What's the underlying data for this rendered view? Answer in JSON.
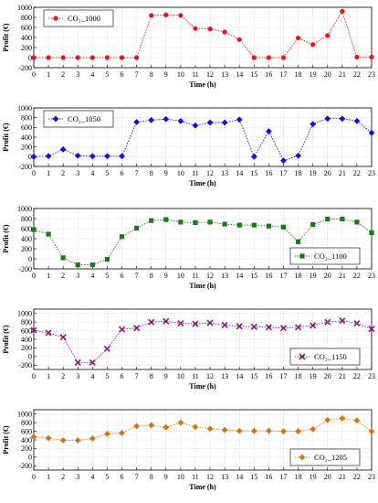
{
  "chart_data": [
    {
      "type": "line",
      "series": [
        {
          "name": "CO₂_1000",
          "color": "#e8141e",
          "marker": "circle",
          "x": [
            0,
            1,
            2,
            3,
            4,
            5,
            6,
            7,
            8,
            9,
            10,
            11,
            12,
            13,
            14,
            15,
            16,
            17,
            18,
            19,
            20,
            21,
            22,
            23
          ],
          "values": [
            0,
            0,
            0,
            0,
            0,
            0,
            0,
            0,
            840,
            850,
            840,
            580,
            570,
            510,
            360,
            0,
            0,
            0,
            390,
            260,
            440,
            920,
            10,
            10
          ]
        }
      ],
      "xlabel": "Time (h)",
      "ylabel": "Profit (€)",
      "xlim": [
        0,
        23
      ],
      "ylim": [
        -200,
        1000
      ],
      "yticks": [
        -200,
        0,
        200,
        400,
        600,
        800,
        1000
      ],
      "xticks": [
        0,
        1,
        2,
        3,
        4,
        5,
        6,
        7,
        8,
        9,
        10,
        11,
        12,
        13,
        14,
        15,
        16,
        17,
        18,
        19,
        20,
        21,
        22,
        23
      ],
      "grid": true,
      "legend": "top-left"
    },
    {
      "type": "line",
      "series": [
        {
          "name": "CO₂_1050",
          "color": "#1010d8",
          "marker": "diamond",
          "x": [
            0,
            1,
            2,
            3,
            4,
            5,
            6,
            7,
            8,
            9,
            10,
            11,
            12,
            13,
            14,
            15,
            16,
            17,
            18,
            19,
            20,
            21,
            22,
            23
          ],
          "values": [
            0,
            10,
            150,
            20,
            10,
            10,
            10,
            710,
            750,
            770,
            730,
            640,
            700,
            700,
            760,
            0,
            520,
            -80,
            20,
            670,
            780,
            780,
            730,
            490
          ]
        }
      ],
      "xlabel": "Time (h)",
      "ylabel": "Profit (€)",
      "xlim": [
        0,
        23
      ],
      "ylim": [
        -200,
        1000
      ],
      "yticks": [
        -200,
        0,
        200,
        400,
        600,
        800,
        1000
      ],
      "xticks": [
        0,
        1,
        2,
        3,
        4,
        5,
        6,
        7,
        8,
        9,
        10,
        11,
        12,
        13,
        14,
        15,
        16,
        17,
        18,
        19,
        20,
        21,
        22,
        23
      ],
      "grid": true,
      "legend": "top-left"
    },
    {
      "type": "line",
      "series": [
        {
          "name": "CO₂_1100",
          "color": "#1a7a1a",
          "marker": "square",
          "x": [
            0,
            1,
            2,
            3,
            4,
            5,
            6,
            7,
            8,
            9,
            10,
            11,
            12,
            13,
            14,
            15,
            16,
            17,
            18,
            19,
            20,
            21,
            22,
            23
          ],
          "values": [
            580,
            490,
            20,
            -120,
            -120,
            -10,
            440,
            610,
            760,
            780,
            730,
            720,
            730,
            690,
            670,
            670,
            650,
            630,
            340,
            680,
            790,
            790,
            730,
            520
          ]
        }
      ],
      "xlabel": "Time (h)",
      "ylabel": "Profit (€)",
      "xlim": [
        0,
        23
      ],
      "ylim": [
        -200,
        1000
      ],
      "yticks": [
        -200,
        0,
        200,
        400,
        600,
        800,
        1000
      ],
      "xticks": [
        0,
        1,
        2,
        3,
        4,
        5,
        6,
        7,
        8,
        9,
        10,
        11,
        12,
        13,
        14,
        15,
        16,
        17,
        18,
        19,
        20,
        21,
        22,
        23
      ],
      "grid": true,
      "legend": "bottom-right"
    },
    {
      "type": "line",
      "series": [
        {
          "name": "CO₂_1150",
          "color": "#8a1a7a",
          "marker": "x",
          "x": [
            0,
            1,
            2,
            3,
            4,
            5,
            6,
            7,
            8,
            9,
            10,
            11,
            12,
            13,
            14,
            15,
            16,
            17,
            18,
            19,
            20,
            21,
            22,
            23
          ],
          "values": [
            610,
            550,
            450,
            -140,
            -140,
            180,
            630,
            660,
            800,
            820,
            770,
            760,
            780,
            730,
            700,
            690,
            680,
            660,
            680,
            720,
            800,
            830,
            770,
            640
          ]
        }
      ],
      "xlabel": "Time (h)",
      "ylabel": "Profit (€)",
      "xlim": [
        0,
        23
      ],
      "ylim": [
        -300,
        1100
      ],
      "yticks": [
        -200,
        0,
        200,
        400,
        600,
        800,
        1000
      ],
      "xticks": [
        0,
        1,
        2,
        3,
        4,
        5,
        6,
        7,
        8,
        9,
        10,
        11,
        12,
        13,
        14,
        15,
        16,
        17,
        18,
        19,
        20,
        21,
        22,
        23
      ],
      "grid": true,
      "legend": "bottom-right"
    },
    {
      "type": "line",
      "series": [
        {
          "name": "CO₂_1205",
          "color": "#d9720f",
          "marker": "diamond",
          "x": [
            0,
            1,
            2,
            3,
            4,
            5,
            6,
            7,
            8,
            9,
            10,
            11,
            12,
            13,
            14,
            15,
            16,
            17,
            18,
            19,
            20,
            21,
            22,
            23
          ],
          "values": [
            470,
            440,
            390,
            390,
            430,
            540,
            560,
            720,
            740,
            690,
            800,
            700,
            660,
            630,
            610,
            610,
            610,
            600,
            600,
            650,
            860,
            900,
            850,
            600
          ]
        }
      ],
      "xlabel": "Time (h)",
      "ylabel": "Profit (€)",
      "xlim": [
        0,
        23
      ],
      "ylim": [
        -300,
        1100
      ],
      "yticks": [
        -200,
        0,
        200,
        400,
        600,
        800,
        1000
      ],
      "xticks": [
        0,
        1,
        2,
        3,
        4,
        5,
        6,
        7,
        8,
        9,
        10,
        11,
        12,
        13,
        14,
        15,
        16,
        17,
        18,
        19,
        20,
        21,
        22,
        23
      ],
      "grid": true,
      "legend": "bottom-right"
    }
  ]
}
